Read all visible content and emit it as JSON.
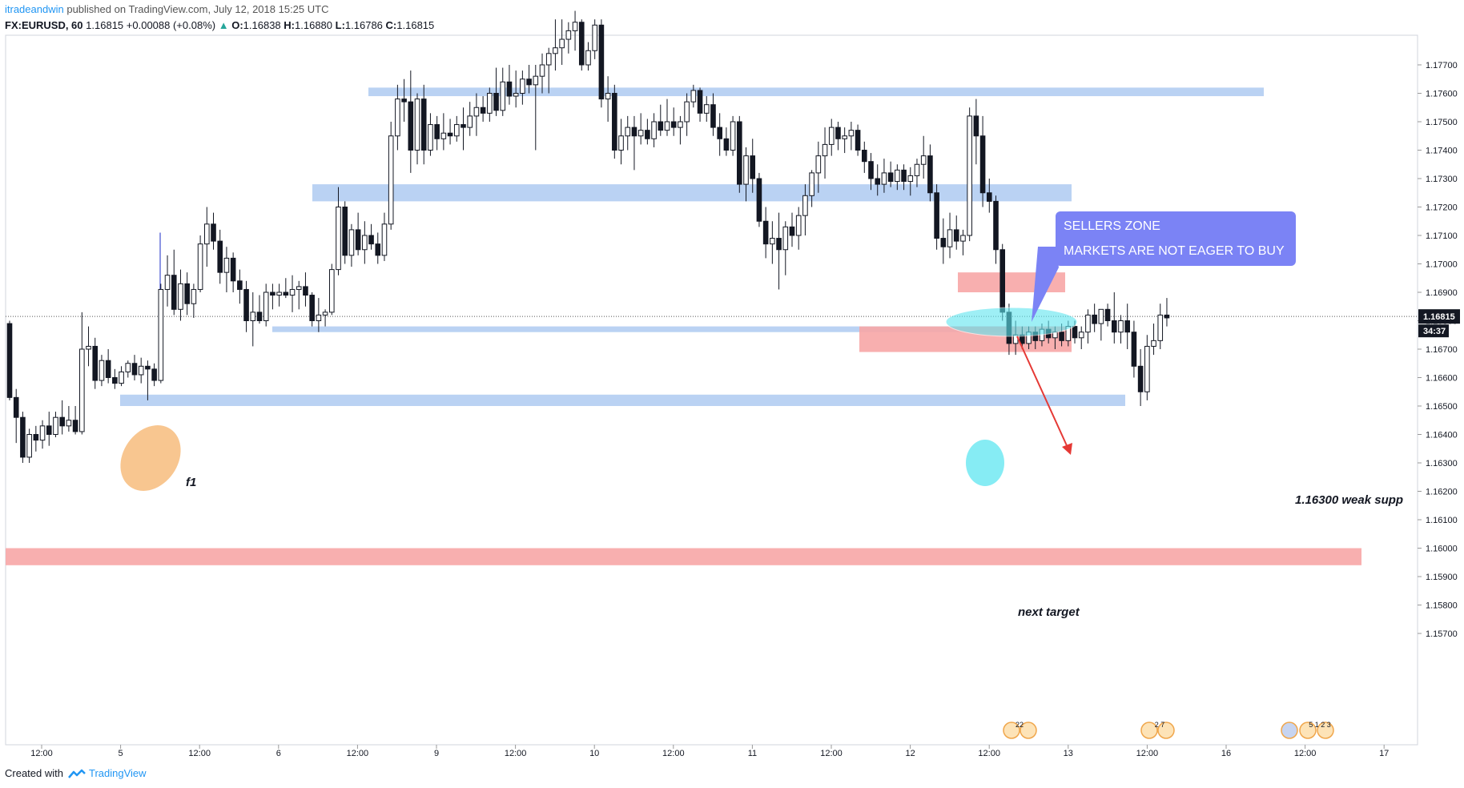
{
  "header": {
    "author": "itradeandwin",
    "published_text": "published on TradingView.com, July 12, 2018 15:25 UTC",
    "symbol": "FX:EURUSD, 60",
    "last": "1.16815",
    "change": "+0.00088 (+0.08%)",
    "open_label": "O:",
    "open": "1.16838",
    "high_label": "H:",
    "high": "1.16880",
    "low_label": "L:",
    "low": "1.16786",
    "close_label": "C:",
    "close": "1.16815"
  },
  "footer": {
    "created_with": "Created with",
    "brand": "TradingView"
  },
  "annotations": {
    "sellers_title": "SELLERS ZONE",
    "sellers_text": "MARKETS ARE NOT EAGER TO BUY",
    "f1": "f1",
    "weak_support": "1.16300 weak supp",
    "next_target": "next target"
  },
  "colors": {
    "support_zone": "#b3cdf2",
    "resistance_zone": "#f7a6a6",
    "trend_line": "#1a2bc7",
    "weak_support_line": "#e53935",
    "callout": "#7b83f5",
    "highlight_cyan": "#5ee6f0",
    "highlight_orange": "#f5b36b"
  },
  "chart_data": {
    "type": "candlestick",
    "symbol": "FX:EURUSD",
    "interval": "60",
    "y_axis": {
      "range": [
        1.1568,
        1.1786
      ],
      "ticks": [
        "1.17700",
        "1.17600",
        "1.17500",
        "1.17400",
        "1.17300",
        "1.17200",
        "1.17100",
        "1.17000",
        "1.16900",
        "1.16800",
        "1.16700",
        "1.16600",
        "1.16500",
        "1.16400",
        "1.16300",
        "1.16200",
        "1.16100",
        "1.16000",
        "1.15900",
        "1.15800",
        "1.15700"
      ],
      "last_price": "1.16815",
      "countdown": "34:37"
    },
    "x_axis": {
      "ticks": [
        "12:00",
        "5",
        "12:00",
        "6",
        "12:00",
        "9",
        "12:00",
        "10",
        "12:00",
        "11",
        "12:00",
        "12",
        "12:00",
        "13",
        "12:00",
        "16",
        "12:00",
        "17"
      ]
    },
    "zones": [
      {
        "name": "support-zone-1.1761",
        "kind": "support",
        "from": 1.1759,
        "to": 1.1762
      },
      {
        "name": "support-zone-1.1725",
        "kind": "support",
        "from": 1.1722,
        "to": 1.1728
      },
      {
        "name": "support-zone-1.1678",
        "kind": "support",
        "from": 1.1676,
        "to": 1.1678
      },
      {
        "name": "support-zone-1.1652",
        "kind": "support",
        "from": 1.165,
        "to": 1.1654
      },
      {
        "name": "resistance-zone-1.1694",
        "kind": "resistance",
        "from": 1.169,
        "to": 1.1697
      },
      {
        "name": "resistance-zone-1.1673",
        "kind": "resistance",
        "from": 1.1669,
        "to": 1.1678
      },
      {
        "name": "resistance-zone-1.1597",
        "kind": "resistance",
        "from": 1.1594,
        "to": 1.16
      }
    ],
    "lines": [
      {
        "name": "trend-line-1.1711",
        "price": 1.1711
      },
      {
        "name": "trend-line-1.1690",
        "price": 1.169
      },
      {
        "name": "weak-support-line",
        "price": 1.163
      }
    ],
    "candles": [
      [
        1.1679,
        1.168,
        1.1652,
        1.1653
      ],
      [
        1.1653,
        1.1656,
        1.1637,
        1.1646
      ],
      [
        1.1646,
        1.1648,
        1.163,
        1.1632
      ],
      [
        1.1632,
        1.1642,
        1.163,
        1.164
      ],
      [
        1.164,
        1.1643,
        1.1634,
        1.1638
      ],
      [
        1.1638,
        1.1645,
        1.1635,
        1.1643
      ],
      [
        1.1643,
        1.1648,
        1.1636,
        1.164
      ],
      [
        1.164,
        1.1648,
        1.1639,
        1.1646
      ],
      [
        1.1646,
        1.1652,
        1.164,
        1.1643
      ],
      [
        1.1643,
        1.165,
        1.1641,
        1.1645
      ],
      [
        1.1645,
        1.165,
        1.164,
        1.1641
      ],
      [
        1.1641,
        1.1683,
        1.164,
        1.167
      ],
      [
        1.167,
        1.1678,
        1.1664,
        1.1671
      ],
      [
        1.1671,
        1.1674,
        1.1656,
        1.1659
      ],
      [
        1.1659,
        1.1668,
        1.1657,
        1.1666
      ],
      [
        1.1666,
        1.167,
        1.1658,
        1.166
      ],
      [
        1.166,
        1.1663,
        1.1656,
        1.1658
      ],
      [
        1.1658,
        1.1664,
        1.1657,
        1.1662
      ],
      [
        1.1662,
        1.1666,
        1.166,
        1.1665
      ],
      [
        1.1665,
        1.1668,
        1.1659,
        1.1661
      ],
      [
        1.1661,
        1.1667,
        1.1658,
        1.1664
      ],
      [
        1.1664,
        1.1666,
        1.1652,
        1.1663
      ],
      [
        1.1663,
        1.1665,
        1.1657,
        1.1659
      ],
      [
        1.1659,
        1.1693,
        1.1658,
        1.1691
      ],
      [
        1.1691,
        1.1703,
        1.1685,
        1.1696
      ],
      [
        1.1696,
        1.1705,
        1.1682,
        1.1684
      ],
      [
        1.1684,
        1.1698,
        1.168,
        1.1693
      ],
      [
        1.1693,
        1.1697,
        1.1682,
        1.1686
      ],
      [
        1.1686,
        1.1693,
        1.1681,
        1.1691
      ],
      [
        1.1691,
        1.171,
        1.169,
        1.1707
      ],
      [
        1.1707,
        1.172,
        1.1699,
        1.1714
      ],
      [
        1.1714,
        1.1718,
        1.1705,
        1.1708
      ],
      [
        1.1708,
        1.1712,
        1.1693,
        1.1697
      ],
      [
        1.1697,
        1.1706,
        1.169,
        1.1702
      ],
      [
        1.1702,
        1.1704,
        1.169,
        1.1694
      ],
      [
        1.1694,
        1.1698,
        1.1686,
        1.1691
      ],
      [
        1.1691,
        1.1694,
        1.1676,
        1.168
      ],
      [
        1.168,
        1.169,
        1.1671,
        1.1683
      ],
      [
        1.1683,
        1.1689,
        1.1679,
        1.168
      ],
      [
        1.168,
        1.1693,
        1.1678,
        1.169
      ],
      [
        1.169,
        1.1693,
        1.1684,
        1.1689
      ],
      [
        1.1689,
        1.1693,
        1.1685,
        1.169
      ],
      [
        1.169,
        1.1695,
        1.1688,
        1.1689
      ],
      [
        1.1689,
        1.1696,
        1.1683,
        1.1691
      ],
      [
        1.1691,
        1.1694,
        1.1684,
        1.1692
      ],
      [
        1.1692,
        1.1697,
        1.1685,
        1.1689
      ],
      [
        1.1689,
        1.169,
        1.1678,
        1.168
      ],
      [
        1.168,
        1.1688,
        1.1676,
        1.1682
      ],
      [
        1.1682,
        1.1684,
        1.1678,
        1.1683
      ],
      [
        1.1683,
        1.17,
        1.1682,
        1.1698
      ],
      [
        1.1698,
        1.1727,
        1.1696,
        1.172
      ],
      [
        1.172,
        1.1722,
        1.17,
        1.1703
      ],
      [
        1.1703,
        1.1714,
        1.1699,
        1.1712
      ],
      [
        1.1712,
        1.1718,
        1.1703,
        1.1705
      ],
      [
        1.1705,
        1.1715,
        1.17,
        1.171
      ],
      [
        1.171,
        1.1714,
        1.1705,
        1.1707
      ],
      [
        1.1707,
        1.1711,
        1.17,
        1.1703
      ],
      [
        1.1703,
        1.1718,
        1.1701,
        1.1714
      ],
      [
        1.1714,
        1.175,
        1.1712,
        1.1745
      ],
      [
        1.1745,
        1.1763,
        1.174,
        1.1758
      ],
      [
        1.1758,
        1.1765,
        1.175,
        1.1757
      ],
      [
        1.1757,
        1.1768,
        1.1732,
        1.174
      ],
      [
        1.174,
        1.176,
        1.1735,
        1.1758
      ],
      [
        1.1758,
        1.1763,
        1.1735,
        1.174
      ],
      [
        1.174,
        1.1753,
        1.1738,
        1.1749
      ],
      [
        1.1749,
        1.1752,
        1.174,
        1.1744
      ],
      [
        1.1744,
        1.1753,
        1.174,
        1.1746
      ],
      [
        1.1746,
        1.1751,
        1.1742,
        1.1745
      ],
      [
        1.1745,
        1.1752,
        1.1743,
        1.1749
      ],
      [
        1.1749,
        1.1755,
        1.174,
        1.1748
      ],
      [
        1.1748,
        1.1757,
        1.1745,
        1.1752
      ],
      [
        1.1752,
        1.176,
        1.1745,
        1.1755
      ],
      [
        1.1755,
        1.1759,
        1.175,
        1.1753
      ],
      [
        1.1753,
        1.1762,
        1.175,
        1.176
      ],
      [
        1.176,
        1.1769,
        1.1752,
        1.1754
      ],
      [
        1.1754,
        1.1769,
        1.1752,
        1.1764
      ],
      [
        1.1764,
        1.177,
        1.1756,
        1.1759
      ],
      [
        1.1759,
        1.1768,
        1.1755,
        1.176
      ],
      [
        1.176,
        1.1768,
        1.1756,
        1.1765
      ],
      [
        1.1765,
        1.177,
        1.176,
        1.1763
      ],
      [
        1.1763,
        1.177,
        1.174,
        1.1766
      ],
      [
        1.1766,
        1.1774,
        1.176,
        1.177
      ],
      [
        1.177,
        1.1776,
        1.176,
        1.1774
      ],
      [
        1.1774,
        1.1786,
        1.1768,
        1.1776
      ],
      [
        1.1776,
        1.1786,
        1.177,
        1.1779
      ],
      [
        1.1779,
        1.1785,
        1.1774,
        1.1782
      ],
      [
        1.1782,
        1.1789,
        1.1775,
        1.1785
      ],
      [
        1.1785,
        1.1786,
        1.1768,
        1.177
      ],
      [
        1.177,
        1.1778,
        1.1768,
        1.1775
      ],
      [
        1.1775,
        1.1786,
        1.1772,
        1.1784
      ],
      [
        1.1784,
        1.1786,
        1.1755,
        1.1758
      ],
      [
        1.1758,
        1.1766,
        1.175,
        1.176
      ],
      [
        1.176,
        1.1763,
        1.1737,
        1.174
      ],
      [
        1.174,
        1.1751,
        1.1735,
        1.1745
      ],
      [
        1.1745,
        1.1752,
        1.174,
        1.1748
      ],
      [
        1.1748,
        1.1752,
        1.1733,
        1.1745
      ],
      [
        1.1745,
        1.1753,
        1.1742,
        1.1747
      ],
      [
        1.1747,
        1.1751,
        1.1742,
        1.1744
      ],
      [
        1.1744,
        1.1753,
        1.1741,
        1.175
      ],
      [
        1.175,
        1.1756,
        1.1745,
        1.1747
      ],
      [
        1.1747,
        1.1758,
        1.1745,
        1.175
      ],
      [
        1.175,
        1.1755,
        1.1745,
        1.1748
      ],
      [
        1.1748,
        1.1752,
        1.1742,
        1.175
      ],
      [
        1.175,
        1.176,
        1.1745,
        1.1757
      ],
      [
        1.1757,
        1.1763,
        1.1755,
        1.1761
      ],
      [
        1.1761,
        1.1762,
        1.175,
        1.1753
      ],
      [
        1.1753,
        1.1759,
        1.175,
        1.1756
      ],
      [
        1.1756,
        1.176,
        1.1745,
        1.1748
      ],
      [
        1.1748,
        1.1753,
        1.1738,
        1.1744
      ],
      [
        1.1744,
        1.1748,
        1.1738,
        1.174
      ],
      [
        1.174,
        1.1752,
        1.1738,
        1.175
      ],
      [
        1.175,
        1.1752,
        1.1725,
        1.1728
      ],
      [
        1.1728,
        1.1741,
        1.1722,
        1.1738
      ],
      [
        1.1738,
        1.1744,
        1.1725,
        1.173
      ],
      [
        1.173,
        1.1732,
        1.1713,
        1.1715
      ],
      [
        1.1715,
        1.172,
        1.1702,
        1.1707
      ],
      [
        1.1707,
        1.1715,
        1.17,
        1.1709
      ],
      [
        1.1709,
        1.1718,
        1.1691,
        1.1705
      ],
      [
        1.1705,
        1.1715,
        1.1696,
        1.1713
      ],
      [
        1.1713,
        1.1718,
        1.1706,
        1.171
      ],
      [
        1.171,
        1.172,
        1.1705,
        1.1717
      ],
      [
        1.1717,
        1.1728,
        1.171,
        1.1724
      ],
      [
        1.1724,
        1.1733,
        1.172,
        1.1732
      ],
      [
        1.1732,
        1.1743,
        1.1725,
        1.1738
      ],
      [
        1.1738,
        1.1748,
        1.173,
        1.1742
      ],
      [
        1.1742,
        1.1751,
        1.1738,
        1.1748
      ],
      [
        1.1748,
        1.175,
        1.174,
        1.1744
      ],
      [
        1.1744,
        1.1748,
        1.1739,
        1.1745
      ],
      [
        1.1745,
        1.175,
        1.174,
        1.1747
      ],
      [
        1.1747,
        1.1749,
        1.1738,
        1.174
      ],
      [
        1.174,
        1.1743,
        1.1732,
        1.1736
      ],
      [
        1.1736,
        1.1739,
        1.1726,
        1.173
      ],
      [
        1.173,
        1.1735,
        1.1724,
        1.1728
      ],
      [
        1.1728,
        1.1737,
        1.1725,
        1.1732
      ],
      [
        1.1732,
        1.1736,
        1.1727,
        1.1729
      ],
      [
        1.1729,
        1.1735,
        1.1726,
        1.1733
      ],
      [
        1.1733,
        1.1735,
        1.1726,
        1.1729
      ],
      [
        1.1729,
        1.1734,
        1.1724,
        1.1731
      ],
      [
        1.1731,
        1.1737,
        1.1727,
        1.1735
      ],
      [
        1.1735,
        1.1745,
        1.173,
        1.1738
      ],
      [
        1.1738,
        1.1742,
        1.1722,
        1.1725
      ],
      [
        1.1725,
        1.1728,
        1.1705,
        1.1709
      ],
      [
        1.1709,
        1.1716,
        1.17,
        1.1706
      ],
      [
        1.1706,
        1.1718,
        1.1702,
        1.1712
      ],
      [
        1.1712,
        1.1717,
        1.1705,
        1.1708
      ],
      [
        1.1708,
        1.1712,
        1.1703,
        1.171
      ],
      [
        1.171,
        1.1755,
        1.1708,
        1.1752
      ],
      [
        1.1752,
        1.1758,
        1.1735,
        1.1745
      ],
      [
        1.1745,
        1.1752,
        1.172,
        1.1725
      ],
      [
        1.1725,
        1.173,
        1.1718,
        1.1722
      ],
      [
        1.1722,
        1.1724,
        1.17,
        1.1705
      ],
      [
        1.1705,
        1.1707,
        1.168,
        1.1683
      ],
      [
        1.1683,
        1.1686,
        1.1668,
        1.1672
      ],
      [
        1.1672,
        1.168,
        1.1668,
        1.1675
      ],
      [
        1.1675,
        1.1678,
        1.167,
        1.1672
      ],
      [
        1.1672,
        1.1678,
        1.167,
        1.1676
      ],
      [
        1.1676,
        1.1678,
        1.167,
        1.1673
      ],
      [
        1.1673,
        1.1679,
        1.1671,
        1.1677
      ],
      [
        1.1677,
        1.168,
        1.1672,
        1.1674
      ],
      [
        1.1674,
        1.1678,
        1.167,
        1.1676
      ],
      [
        1.1676,
        1.1679,
        1.1671,
        1.1673
      ],
      [
        1.1673,
        1.168,
        1.1671,
        1.1678
      ],
      [
        1.1678,
        1.168,
        1.1672,
        1.1674
      ],
      [
        1.1674,
        1.1678,
        1.167,
        1.1676
      ],
      [
        1.1676,
        1.1684,
        1.1672,
        1.1682
      ],
      [
        1.1682,
        1.1686,
        1.1676,
        1.1679
      ],
      [
        1.1679,
        1.1684,
        1.1673,
        1.1684
      ],
      [
        1.1684,
        1.1686,
        1.1678,
        1.168
      ],
      [
        1.168,
        1.169,
        1.1672,
        1.1676
      ],
      [
        1.1676,
        1.1682,
        1.1672,
        1.168
      ],
      [
        1.168,
        1.1686,
        1.167,
        1.1676
      ],
      [
        1.1676,
        1.168,
        1.166,
        1.1664
      ],
      [
        1.1664,
        1.167,
        1.165,
        1.1655
      ],
      [
        1.1655,
        1.1675,
        1.1652,
        1.1671
      ],
      [
        1.1671,
        1.1679,
        1.1668,
        1.1673
      ],
      [
        1.1673,
        1.1686,
        1.167,
        1.1682
      ],
      [
        1.1682,
        1.1688,
        1.1678,
        1.1681
      ]
    ]
  }
}
